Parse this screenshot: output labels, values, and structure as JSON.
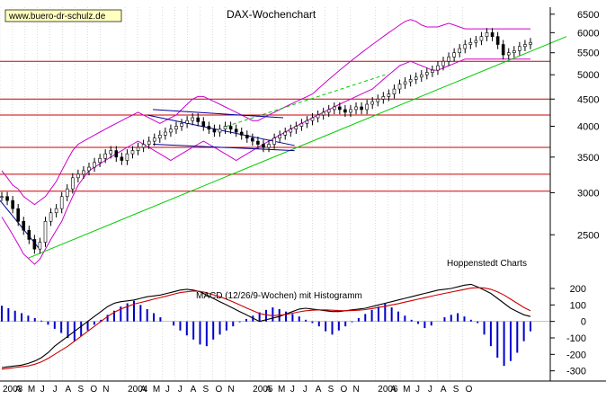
{
  "header": {
    "source_label": "www.buero-dr-schulz.de",
    "title": "DAX-Wochenchart",
    "credit": "Hoppenstedt Charts",
    "macd_label": "MACD (12/26/9-Wochen) mit Histogramm"
  },
  "colors": {
    "background": "#ffffff",
    "price": "#000000",
    "bollinger": "#cc00cc",
    "support_resistance": "#cc0000",
    "trend_green": "#00cc00",
    "trend_blue": "#000099",
    "macd_line": "#000000",
    "signal_line": "#cc0000",
    "histogram": "#0000cc",
    "grid": "#bbbbbb"
  },
  "chart_data": [
    {
      "type": "line",
      "title": "DAX-Wochenchart",
      "ylim": [
        2150,
        6700
      ],
      "y_scale": "log",
      "yticks": [
        2500,
        3000,
        3500,
        4000,
        4500,
        5000,
        5500,
        6000,
        6500
      ],
      "horizontal_lines": [
        3020,
        3250,
        3650,
        4200,
        4500,
        5300
      ],
      "series": [
        {
          "kind": "weekly-close",
          "values": [
            2950,
            2900,
            2800,
            2650,
            2550,
            2450,
            2350,
            2420,
            2650,
            2750,
            2800,
            2950,
            3050,
            3200,
            3250,
            3300,
            3350,
            3420,
            3480,
            3550,
            3600,
            3500,
            3450,
            3550,
            3600,
            3650,
            3700,
            3750,
            3800,
            3850,
            3900,
            3950,
            4000,
            4050,
            4100,
            4150,
            4080,
            4000,
            3950,
            3900,
            3950,
            4000,
            3950,
            3900,
            3850,
            3800,
            3750,
            3700,
            3650,
            3700,
            3800,
            3850,
            3900,
            3950,
            4000,
            4050,
            4100,
            4150,
            4200,
            4250,
            4300,
            4350,
            4300,
            4250,
            4300,
            4350,
            4300,
            4400,
            4450,
            4500,
            4550,
            4600,
            4700,
            4800,
            4850,
            4900,
            4950,
            5000,
            5050,
            5100,
            5200,
            5300,
            5400,
            5500,
            5600,
            5700,
            5750,
            5800,
            5900,
            6000,
            5900,
            5700,
            5450,
            5500,
            5550,
            5650,
            5700,
            5750
          ]
        },
        {
          "kind": "bollinger-upper",
          "values": [
            3300,
            3200,
            3100,
            3050,
            2950,
            2900,
            2850,
            2900,
            2950,
            3050,
            3150,
            3300,
            3450,
            3600,
            3700,
            3750,
            3800,
            3850,
            3900,
            3950,
            4000,
            4050,
            4100,
            4150,
            4200,
            4250,
            4200,
            4150,
            4100,
            4050,
            4100,
            4150,
            4200,
            4300,
            4400,
            4500,
            4550,
            4550,
            4500,
            4450,
            4400,
            4350,
            4300,
            4250,
            4200,
            4150,
            4100,
            4100,
            4150,
            4200,
            4250,
            4300,
            4350,
            4400,
            4450,
            4500,
            4550,
            4600,
            4700,
            4800,
            4900,
            5000,
            5100,
            5200,
            5300,
            5400,
            5500,
            5600,
            5700,
            5800,
            5900,
            6000,
            6100,
            6200,
            6300,
            6350,
            6300,
            6200,
            6150,
            6150,
            6150,
            6200,
            6250,
            6200,
            6150,
            6100,
            6100,
            6100,
            6100,
            6100,
            6100,
            6100,
            6100,
            6100,
            6100,
            6100,
            6100,
            6100
          ]
        },
        {
          "kind": "bollinger-lower",
          "values": [
            2700,
            2600,
            2500,
            2400,
            2300,
            2250,
            2200,
            2250,
            2350,
            2450,
            2550,
            2650,
            2800,
            2950,
            3100,
            3200,
            3300,
            3350,
            3400,
            3450,
            3500,
            3550,
            3600,
            3650,
            3700,
            3750,
            3700,
            3650,
            3600,
            3550,
            3500,
            3450,
            3500,
            3550,
            3600,
            3650,
            3700,
            3750,
            3700,
            3650,
            3600,
            3550,
            3500,
            3450,
            3500,
            3550,
            3600,
            3650,
            3700,
            3750,
            3800,
            3850,
            3900,
            3950,
            4000,
            4050,
            4100,
            4150,
            4200,
            4250,
            4300,
            4350,
            4400,
            4450,
            4500,
            4550,
            4600,
            4650,
            4700,
            4800,
            4900,
            5000,
            5100,
            5200,
            5250,
            5300,
            5250,
            5200,
            5150,
            5100,
            5100,
            5150,
            5200,
            5250,
            5300,
            5350,
            5350,
            5350,
            5350,
            5350,
            5350,
            5350,
            5350,
            5350,
            5350,
            5350,
            5350,
            5350
          ]
        }
      ],
      "trendlines": [
        {
          "kind": "green",
          "from": [
            0.05,
            2260
          ],
          "to": [
            1.0,
            5900
          ]
        },
        {
          "kind": "green-dashed",
          "from": [
            0.4,
            4000
          ],
          "to": [
            0.68,
            5000
          ]
        },
        {
          "kind": "blue",
          "from": [
            0.26,
            4200
          ],
          "to": [
            0.52,
            3680
          ]
        },
        {
          "kind": "blue",
          "from": [
            0.27,
            3700
          ],
          "to": [
            0.52,
            3600
          ]
        },
        {
          "kind": "blue",
          "from": [
            0.27,
            4300
          ],
          "to": [
            0.5,
            4150
          ]
        },
        {
          "kind": "blue",
          "from": [
            0.0,
            2900
          ],
          "to": [
            0.07,
            2350
          ]
        }
      ]
    },
    {
      "type": "bar",
      "title": "MACD (12/26/9-Wochen) mit Histogramm",
      "ylim": [
        -340,
        260
      ],
      "yticks": [
        -300,
        -200,
        -100,
        0,
        100,
        200
      ],
      "series": [
        {
          "name": "MACD",
          "values": [
            -280,
            -275,
            -270,
            -265,
            -255,
            -240,
            -220,
            -190,
            -150,
            -120,
            -90,
            -60,
            -30,
            0,
            30,
            60,
            90,
            110,
            120,
            125,
            130,
            140,
            150,
            155,
            160,
            170,
            180,
            190,
            195,
            190,
            180,
            160,
            140,
            120,
            100,
            80,
            60,
            40,
            20,
            0,
            10,
            20,
            30,
            45,
            60,
            75,
            80,
            75,
            70,
            65,
            60,
            60,
            65,
            70,
            75,
            80,
            90,
            100,
            110,
            120,
            130,
            140,
            150,
            160,
            170,
            180,
            190,
            195,
            200,
            210,
            220,
            225,
            210,
            190,
            170,
            140,
            110,
            80,
            60,
            40,
            30
          ]
        },
        {
          "name": "Signal",
          "values": [
            -290,
            -285,
            -280,
            -275,
            -270,
            -260,
            -245,
            -225,
            -200,
            -175,
            -150,
            -120,
            -90,
            -60,
            -30,
            0,
            30,
            55,
            75,
            90,
            105,
            115,
            125,
            135,
            145,
            155,
            165,
            175,
            180,
            185,
            182,
            175,
            162,
            150,
            135,
            118,
            100,
            82,
            65,
            48,
            40,
            35,
            38,
            42,
            50,
            58,
            65,
            68,
            70,
            70,
            68,
            66,
            65,
            66,
            68,
            72,
            78,
            85,
            92,
            100,
            108,
            117,
            126,
            135,
            144,
            153,
            162,
            170,
            178,
            186,
            194,
            202,
            205,
            203,
            195,
            180,
            160,
            135,
            110,
            85,
            65
          ]
        },
        {
          "name": "Histogramm",
          "values": [
            95,
            80,
            65,
            50,
            35,
            20,
            5,
            -20,
            -45,
            -70,
            -100,
            -120,
            -90,
            -55,
            -20,
            10,
            40,
            65,
            90,
            110,
            125,
            100,
            75,
            50,
            25,
            0,
            -25,
            -55,
            -85,
            -110,
            -140,
            -150,
            -110,
            -80,
            -55,
            -30,
            -5,
            15,
            35,
            55,
            70,
            85,
            75,
            60,
            45,
            30,
            10,
            -10,
            -30,
            -60,
            -80,
            -55,
            -30,
            -5,
            20,
            45,
            70,
            90,
            110,
            85,
            60,
            35,
            10,
            -15,
            -40,
            -25,
            0,
            25,
            40,
            50,
            30,
            10,
            -10,
            -80,
            -150,
            -220,
            -270,
            -240,
            -190,
            -120,
            -60
          ]
        }
      ]
    }
  ],
  "axes": {
    "price_ticks": [
      "6500",
      "6000",
      "5500",
      "5000",
      "4500",
      "4000",
      "3500",
      "3000",
      "2500"
    ],
    "macd_ticks": [
      "200",
      "100",
      "0",
      "-100",
      "-200",
      "-300"
    ],
    "x_ticks": [
      "2003",
      "A",
      "M",
      "J",
      "J",
      "A",
      "S",
      "O",
      "N",
      "2004",
      "A",
      "M",
      "J",
      "J",
      "A",
      "S",
      "O",
      "N",
      "2005",
      "A",
      "M",
      "J",
      "J",
      "A",
      "S",
      "O",
      "N",
      "2006",
      "A",
      "M",
      "J",
      "J",
      "A",
      "S",
      "O"
    ],
    "x_tick_index": [
      0,
      1,
      2,
      3,
      4,
      5,
      6,
      7,
      8,
      10,
      11,
      12,
      13,
      14,
      15,
      16,
      17,
      18,
      20,
      21,
      22,
      23,
      24,
      25,
      26,
      27,
      28,
      30,
      31,
      32,
      33,
      34,
      35,
      36,
      37
    ]
  }
}
